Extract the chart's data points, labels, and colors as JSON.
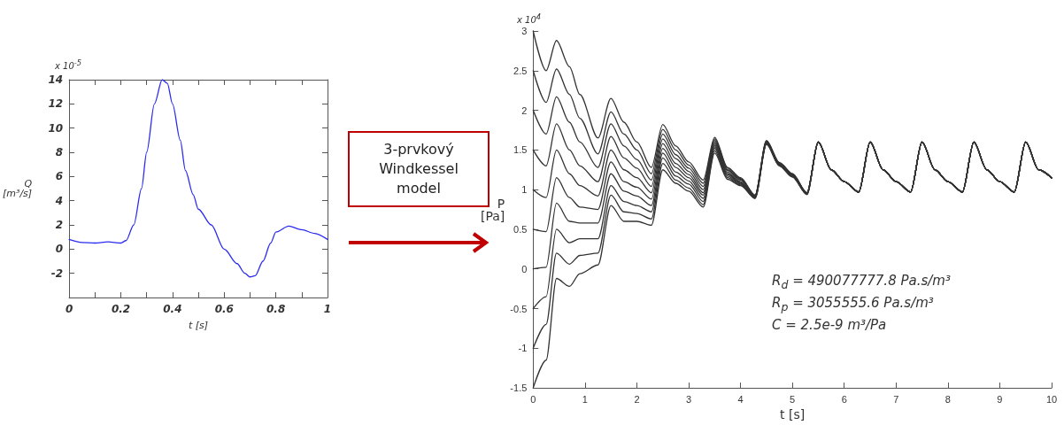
{
  "chart_data": [
    {
      "type": "line",
      "xlabel": "t [s]",
      "ylabel": "Q [m³/s]",
      "annotations": [
        "x 10$^{-5}$"
      ],
      "x": [
        0,
        0.05,
        0.1,
        0.15,
        0.2,
        0.22,
        0.25,
        0.28,
        0.3,
        0.33,
        0.36,
        0.38,
        0.4,
        0.43,
        0.45,
        0.48,
        0.5,
        0.55,
        0.6,
        0.65,
        0.68,
        0.7,
        0.72,
        0.75,
        0.78,
        0.8,
        0.85,
        0.9,
        0.95,
        1
      ],
      "series": [
        {
          "color": "#2b2bf0",
          "values": [
            0.8,
            0.55,
            0.5,
            0.6,
            0.5,
            0.7,
            2,
            5,
            8,
            12,
            14,
            13.7,
            12,
            9,
            6.5,
            4.5,
            3.3,
            2,
            0,
            -1.2,
            -2,
            -2.3,
            -2.2,
            -1,
            0.5,
            1.4,
            1.9,
            1.6,
            1.3,
            0.8
          ]
        }
      ],
      "xlim": [
        0,
        1
      ],
      "ylim": [
        -4,
        14
      ],
      "xticks": [
        0,
        {
          "value": 0.1,
          "label": null
        },
        0.2,
        {
          "value": 0.3,
          "label": null
        },
        0.4,
        {
          "value": 0.5,
          "label": null
        },
        0.6,
        {
          "value": 0.7,
          "label": null
        },
        0.8,
        {
          "value": 0.9,
          "label": null
        },
        1
      ],
      "yticks": [
        -2,
        0,
        2,
        4,
        6,
        8,
        10,
        12,
        14
      ],
      "grid": false,
      "marker": "none",
      "line_style": "solid"
    },
    {
      "type": "line",
      "xlabel": "t [s]",
      "ylabel": "P [Pa]",
      "annotations": [
        "3-prvkový Windkessel model",
        "x 10$^{4}$",
        "R$_{d}$ = 490077777.8   Pa.s/m³",
        "R$_{p}$ = 3055555.6   Pa.s/m³",
        "C = 2.5e-9   m³/Pa"
      ],
      "x": [
        0,
        0.25,
        0.45,
        0.7,
        0.9,
        1.25,
        1.5,
        1.75,
        2.0,
        2.28,
        2.5,
        2.75,
        3.0,
        3.28,
        3.5,
        3.75,
        4.0,
        4.28,
        4.5,
        4.75,
        5.0,
        5.28,
        5.5,
        5.75,
        6.0,
        6.28,
        6.5,
        6.75,
        7.0,
        7.28,
        7.5,
        7.75,
        8.0,
        8.28,
        8.5,
        8.75,
        9.0,
        9.28,
        9.5,
        9.75,
        10
      ],
      "series": [
        {
          "color": "#333333",
          "values": [
            3.0,
            2.5,
            2.88,
            2.55,
            2.2,
            1.65,
            2.15,
            1.85,
            1.6,
            1.28,
            1.82,
            1.55,
            1.35,
            1.12,
            1.66,
            1.28,
            1.15,
            0.93,
            1.62,
            1.34,
            1.2,
            0.96,
            1.6,
            1.25,
            1.1,
            0.97,
            1.6,
            1.25,
            1.1,
            0.97,
            1.6,
            1.25,
            1.1,
            0.97,
            1.6,
            1.25,
            1.1,
            0.97,
            1.6,
            1.25,
            1.15
          ]
        },
        {
          "color": "#333333",
          "values": [
            2.5,
            2.1,
            2.52,
            2.2,
            1.9,
            1.45,
            1.98,
            1.7,
            1.5,
            1.2,
            1.76,
            1.5,
            1.31,
            1.08,
            1.64,
            1.27,
            1.14,
            0.93,
            1.61,
            1.34,
            1.2,
            0.96,
            1.6,
            1.25,
            1.1,
            0.97,
            1.6,
            1.25,
            1.1,
            0.97,
            1.6,
            1.25,
            1.1,
            0.97,
            1.6,
            1.25,
            1.1,
            0.97,
            1.6,
            1.25,
            1.15
          ]
        },
        {
          "color": "#333333",
          "values": [
            2.0,
            1.7,
            2.17,
            1.85,
            1.6,
            1.28,
            1.83,
            1.55,
            1.38,
            1.12,
            1.7,
            1.44,
            1.27,
            1.04,
            1.62,
            1.25,
            1.13,
            0.92,
            1.61,
            1.33,
            1.19,
            0.96,
            1.6,
            1.25,
            1.1,
            0.97,
            1.6,
            1.25,
            1.1,
            0.97,
            1.6,
            1.25,
            1.1,
            0.97,
            1.6,
            1.25,
            1.1,
            0.97,
            1.6,
            1.25,
            1.15
          ]
        },
        {
          "color": "#333333",
          "values": [
            1.5,
            1.3,
            1.83,
            1.5,
            1.3,
            1.1,
            1.67,
            1.4,
            1.27,
            1.04,
            1.64,
            1.39,
            1.23,
            1.0,
            1.6,
            1.24,
            1.12,
            0.92,
            1.6,
            1.33,
            1.19,
            0.95,
            1.6,
            1.25,
            1.1,
            0.97,
            1.6,
            1.25,
            1.1,
            0.97,
            1.6,
            1.25,
            1.1,
            0.97,
            1.6,
            1.25,
            1.1,
            0.97,
            1.6,
            1.25,
            1.15
          ]
        },
        {
          "color": "#333333",
          "values": [
            1.0,
            0.9,
            1.5,
            1.2,
            1.05,
            0.92,
            1.5,
            1.25,
            1.15,
            0.96,
            1.58,
            1.33,
            1.19,
            0.96,
            1.58,
            1.22,
            1.1,
            0.91,
            1.6,
            1.32,
            1.18,
            0.95,
            1.6,
            1.25,
            1.1,
            0.97,
            1.6,
            1.25,
            1.1,
            0.97,
            1.6,
            1.25,
            1.1,
            0.97,
            1.6,
            1.25,
            1.1,
            0.97,
            1.6,
            1.25,
            1.15
          ]
        },
        {
          "color": "#333333",
          "values": [
            0.5,
            0.47,
            1.15,
            0.9,
            0.78,
            0.75,
            1.35,
            1.1,
            1.03,
            0.88,
            1.52,
            1.28,
            1.15,
            0.93,
            1.56,
            1.2,
            1.09,
            0.91,
            1.59,
            1.32,
            1.18,
            0.95,
            1.6,
            1.25,
            1.1,
            0.97,
            1.6,
            1.25,
            1.1,
            0.97,
            1.6,
            1.25,
            1.1,
            0.97,
            1.6,
            1.25,
            1.1,
            0.97,
            1.6,
            1.25,
            1.15
          ]
        },
        {
          "color": "#333333",
          "values": [
            0.0,
            0.02,
            0.83,
            0.6,
            0.58,
            0.58,
            1.2,
            0.98,
            0.92,
            0.8,
            1.46,
            1.22,
            1.11,
            0.89,
            1.54,
            1.19,
            1.08,
            0.9,
            1.59,
            1.31,
            1.17,
            0.95,
            1.6,
            1.25,
            1.1,
            0.97,
            1.6,
            1.25,
            1.1,
            0.97,
            1.6,
            1.25,
            1.1,
            0.97,
            1.6,
            1.25,
            1.1,
            0.97,
            1.6,
            1.25,
            1.15
          ]
        },
        {
          "color": "#333333",
          "values": [
            -0.5,
            -0.35,
            0.5,
            0.33,
            0.38,
            0.38,
            1.05,
            0.85,
            0.8,
            0.72,
            1.4,
            1.17,
            1.07,
            0.85,
            1.52,
            1.17,
            1.07,
            0.9,
            1.58,
            1.31,
            1.17,
            0.94,
            1.6,
            1.25,
            1.1,
            0.97,
            1.6,
            1.25,
            1.1,
            0.97,
            1.6,
            1.25,
            1.1,
            0.97,
            1.6,
            1.25,
            1.1,
            0.97,
            1.6,
            1.25,
            1.15
          ]
        },
        {
          "color": "#333333",
          "values": [
            -1.0,
            -0.7,
            0.2,
            0.06,
            0.17,
            0.2,
            0.93,
            0.72,
            0.7,
            0.63,
            1.33,
            1.12,
            1.02,
            0.81,
            1.49,
            1.15,
            1.06,
            0.89,
            1.58,
            1.3,
            1.16,
            0.94,
            1.6,
            1.25,
            1.1,
            0.97,
            1.6,
            1.25,
            1.1,
            0.97,
            1.6,
            1.25,
            1.1,
            0.97,
            1.6,
            1.25,
            1.1,
            0.97,
            1.6,
            1.25,
            1.15
          ]
        },
        {
          "color": "#333333",
          "values": [
            -1.5,
            -1.15,
            -0.12,
            -0.22,
            -0.06,
            0.05,
            0.8,
            0.6,
            0.6,
            0.55,
            1.25,
            1.08,
            0.98,
            0.78,
            1.46,
            1.13,
            1.05,
            0.89,
            1.57,
            1.3,
            1.16,
            0.94,
            1.6,
            1.25,
            1.1,
            0.97,
            1.6,
            1.25,
            1.1,
            0.97,
            1.6,
            1.25,
            1.1,
            0.97,
            1.6,
            1.25,
            1.1,
            0.97,
            1.6,
            1.25,
            1.15
          ]
        }
      ],
      "xlim": [
        0,
        10
      ],
      "ylim": [
        -1.5,
        3
      ],
      "xticks": [
        0,
        1,
        2,
        3,
        4,
        5,
        6,
        7,
        8,
        9,
        10
      ],
      "yticks": [
        -1.5,
        -1,
        -0.5,
        0,
        0.5,
        1,
        1.5,
        2,
        2.5,
        3
      ],
      "grid": false,
      "marker": "none",
      "line_style": "solid"
    }
  ]
}
